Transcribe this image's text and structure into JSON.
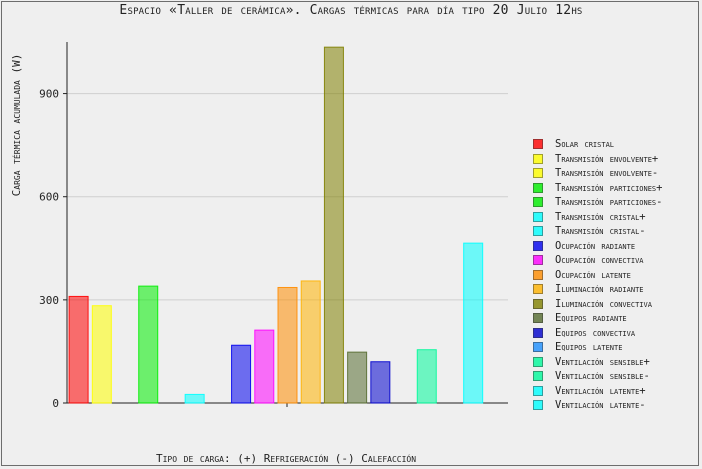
{
  "chart_data": {
    "type": "bar",
    "title": "Espacio «Taller de cerámica». Cargas térmicas para día tipo 20 Julio 12hs",
    "xlabel": "Tipo de carga: (+) Refrigeración (-) Calefacción",
    "ylabel": "Carga térmica acumulada (W)",
    "ylim": [
      0,
      1050
    ],
    "yticks": [
      "0",
      "300",
      "600",
      "900"
    ],
    "ytick_values": [
      0,
      300,
      600,
      900
    ],
    "grid": true,
    "legend_position": "right",
    "series": [
      {
        "name": "Solar cristal",
        "value": 310,
        "color": "#ff0000"
      },
      {
        "name": "Transmisión envolvente+",
        "value": 283,
        "color": "#ffff00"
      },
      {
        "name": "Transmisión envolvente-",
        "value": 0,
        "color": "#ffff00"
      },
      {
        "name": "Transmisión particiones+",
        "value": 340,
        "color": "#00ee00"
      },
      {
        "name": "Transmisión particiones-",
        "value": 0,
        "color": "#00ee00"
      },
      {
        "name": "Transmisión cristal+",
        "value": 25,
        "color": "#00ffff"
      },
      {
        "name": "Transmisión cristal-",
        "value": 0,
        "color": "#00ffff"
      },
      {
        "name": "Ocupación radiante",
        "value": 168,
        "color": "#0000ee"
      },
      {
        "name": "Ocupación convectiva",
        "value": 212,
        "color": "#ff00ff"
      },
      {
        "name": "Ocupación latente",
        "value": 336,
        "color": "#ff8c00"
      },
      {
        "name": "Iluminación radiante",
        "value": 355,
        "color": "#ffb300"
      },
      {
        "name": "Iluminación convectiva",
        "value": 1035,
        "color": "#808000"
      },
      {
        "name": "Equipos radiante",
        "value": 148,
        "color": "#556b2f"
      },
      {
        "name": "Equipos convectiva",
        "value": 120,
        "color": "#0000cd"
      },
      {
        "name": "Equipos latente",
        "value": 0,
        "color": "#1e90ff"
      },
      {
        "name": "Ventilación sensible+",
        "value": 155,
        "color": "#00fa9a"
      },
      {
        "name": "Ventilación sensible-",
        "value": 0,
        "color": "#00fa9a"
      },
      {
        "name": "Ventilación latente+",
        "value": 465,
        "color": "#00ffff"
      },
      {
        "name": "Ventilación latente-",
        "value": 0,
        "color": "#00ffff"
      }
    ]
  }
}
